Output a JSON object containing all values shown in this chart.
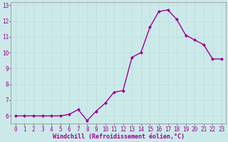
{
  "x": [
    0,
    1,
    2,
    3,
    4,
    5,
    6,
    7,
    8,
    9,
    10,
    11,
    12,
    13,
    14,
    15,
    16,
    17,
    18,
    19,
    20,
    21,
    22,
    23
  ],
  "y": [
    6.0,
    6.0,
    6.0,
    6.0,
    6.0,
    6.0,
    6.1,
    6.4,
    5.7,
    6.3,
    6.8,
    7.5,
    7.6,
    9.7,
    10.0,
    11.6,
    12.6,
    12.7,
    12.1,
    11.1,
    10.8,
    10.5,
    9.6,
    9.6
  ],
  "line_color": "#990099",
  "marker": "D",
  "marker_size": 2.0,
  "bg_color": "#cce9e9",
  "grid_color": "#bbdddd",
  "xlabel": "Windchill (Refroidissement éolien,°C)",
  "xlabel_color": "#990099",
  "tick_color": "#990099",
  "label_color": "#990099",
  "ylim": [
    5.5,
    13.2
  ],
  "xlim": [
    -0.5,
    23.5
  ],
  "yticks": [
    6,
    7,
    8,
    9,
    10,
    11,
    12,
    13
  ],
  "xticks": [
    0,
    1,
    2,
    3,
    4,
    5,
    6,
    7,
    8,
    9,
    10,
    11,
    12,
    13,
    14,
    15,
    16,
    17,
    18,
    19,
    20,
    21,
    22,
    23
  ],
  "tick_fontsize": 5.5,
  "xlabel_fontsize": 6.0,
  "ylabel_fontsize": 6.0,
  "spine_color": "#888888",
  "linewidth": 1.0
}
